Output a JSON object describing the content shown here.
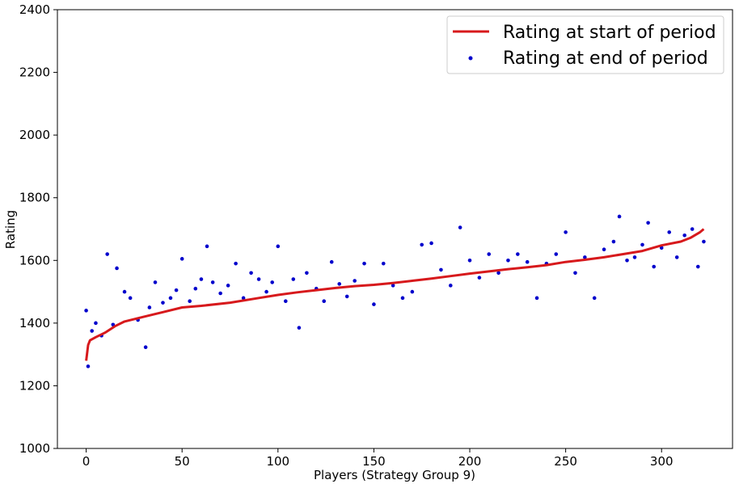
{
  "chart_data": {
    "type": "line",
    "title": "",
    "xlabel": "Players (Strategy Group 9)",
    "ylabel": "Rating",
    "xlim": [
      -15,
      337
    ],
    "ylim": [
      1000,
      2400
    ],
    "x_ticks": [
      0,
      50,
      100,
      150,
      200,
      250,
      300
    ],
    "y_ticks": [
      1000,
      1200,
      1400,
      1600,
      1800,
      2000,
      2200,
      2400
    ],
    "grid": false,
    "legend_position": "top-right",
    "colors": {
      "start_line": "#d7191c",
      "end_points": "#0000cc"
    },
    "series": [
      {
        "name": "Rating at start of period",
        "style": "line",
        "x": [
          0,
          1,
          2,
          5,
          10,
          15,
          20,
          30,
          40,
          50,
          60,
          75,
          90,
          100,
          110,
          120,
          130,
          140,
          150,
          160,
          170,
          180,
          190,
          200,
          210,
          220,
          230,
          240,
          250,
          260,
          270,
          280,
          290,
          300,
          310,
          315,
          320,
          322
        ],
        "y": [
          1280,
          1330,
          1345,
          1355,
          1370,
          1390,
          1405,
          1420,
          1435,
          1450,
          1455,
          1465,
          1480,
          1490,
          1498,
          1505,
          1512,
          1518,
          1522,
          1528,
          1535,
          1542,
          1550,
          1558,
          1565,
          1572,
          1578,
          1585,
          1595,
          1602,
          1610,
          1620,
          1630,
          1648,
          1660,
          1672,
          1690,
          1700
        ]
      },
      {
        "name": "Rating at end of period",
        "style": "scatter",
        "x": [
          0,
          1,
          3,
          5,
          8,
          11,
          14,
          16,
          20,
          23,
          27,
          31,
          33,
          36,
          40,
          44,
          47,
          50,
          54,
          57,
          60,
          63,
          66,
          70,
          74,
          78,
          82,
          86,
          90,
          94,
          97,
          100,
          104,
          108,
          111,
          115,
          120,
          124,
          128,
          132,
          136,
          140,
          145,
          150,
          155,
          160,
          165,
          170,
          175,
          180,
          185,
          190,
          195,
          200,
          205,
          210,
          215,
          220,
          225,
          230,
          235,
          240,
          245,
          250,
          255,
          260,
          265,
          270,
          275,
          278,
          282,
          286,
          290,
          293,
          296,
          300,
          304,
          308,
          312,
          316,
          319,
          322
        ],
        "y": [
          1440,
          1262,
          1375,
          1400,
          1360,
          1620,
          1395,
          1575,
          1500,
          1480,
          1410,
          1323,
          1450,
          1530,
          1465,
          1480,
          1505,
          1605,
          1470,
          1510,
          1540,
          1645,
          1530,
          1495,
          1520,
          1590,
          1480,
          1560,
          1540,
          1500,
          1530,
          1645,
          1470,
          1540,
          1385,
          1560,
          1510,
          1470,
          1595,
          1525,
          1485,
          1535,
          1590,
          1460,
          1590,
          1520,
          1480,
          1500,
          1650,
          1655,
          1570,
          1520,
          1705,
          1600,
          1545,
          1620,
          1560,
          1600,
          1620,
          1595,
          1480,
          1590,
          1620,
          1690,
          1560,
          1610,
          1480,
          1635,
          1660,
          1740,
          1600,
          1610,
          1650,
          1720,
          1580,
          1640,
          1690,
          1610,
          1680,
          1700,
          1580,
          1660
        ]
      }
    ]
  }
}
